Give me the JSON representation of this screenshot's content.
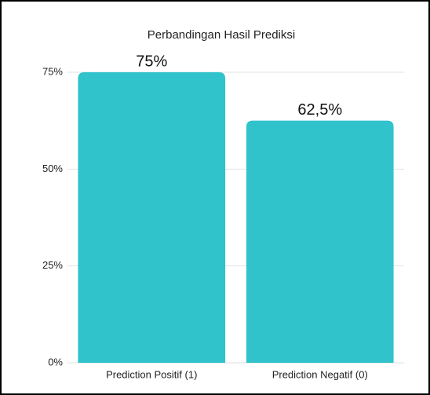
{
  "chart_data": {
    "type": "bar",
    "title": "Perbandingan Hasil Prediksi",
    "categories": [
      "Prediction Positif (1)",
      "Prediction Negatif (0)"
    ],
    "values": [
      75,
      62.5
    ],
    "value_labels": [
      "75%",
      "62,5%"
    ],
    "color": "#31c3cc",
    "ylim": [
      0,
      75
    ],
    "yticks": [
      {
        "value": 0,
        "label": "0%"
      },
      {
        "value": 25,
        "label": "25%"
      },
      {
        "value": 50,
        "label": "50%"
      },
      {
        "value": 75,
        "label": "75%"
      }
    ],
    "grid": true
  }
}
